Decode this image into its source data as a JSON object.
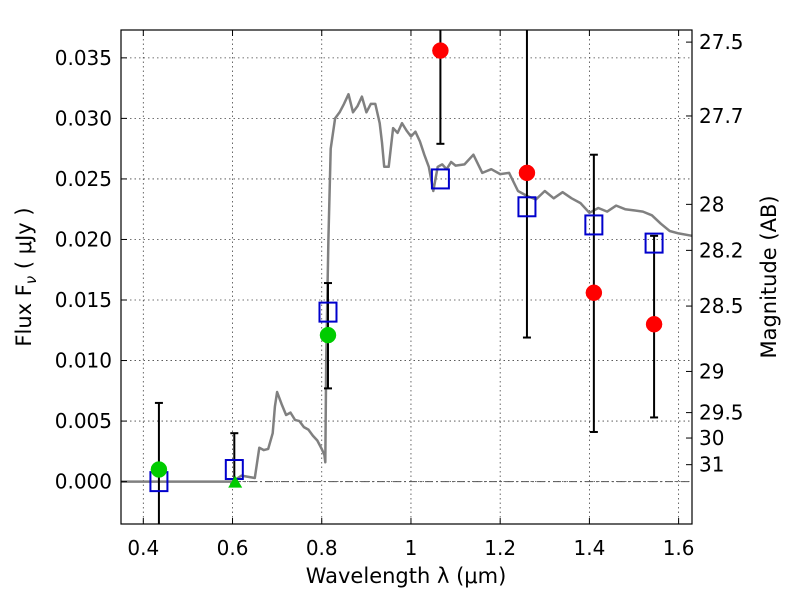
{
  "chart_data": {
    "type": "scatter",
    "xlabel": "Wavelength  λ (μm)",
    "ylabel": "Flux  F",
    "ylabel_sub": "ν",
    "ylabel_unit": "  ( μJy )",
    "y2label": "Magnitude (AB)",
    "xlim": [
      0.35,
      1.63
    ],
    "ylim": [
      -0.0035,
      0.0373
    ],
    "grid": true,
    "x_ticks": [
      {
        "value": 0.4,
        "label": "0.4"
      },
      {
        "value": 0.6,
        "label": "0.6"
      },
      {
        "value": 0.8,
        "label": "0.8"
      },
      {
        "value": 1.0,
        "label": "1"
      },
      {
        "value": 1.2,
        "label": "1.2"
      },
      {
        "value": 1.4,
        "label": "1.4"
      },
      {
        "value": 1.6,
        "label": "1.6"
      }
    ],
    "y_ticks": [
      {
        "value": 0.0,
        "label": "0.000"
      },
      {
        "value": 0.005,
        "label": "0.005"
      },
      {
        "value": 0.01,
        "label": "0.010"
      },
      {
        "value": 0.015,
        "label": "0.015"
      },
      {
        "value": 0.02,
        "label": "0.020"
      },
      {
        "value": 0.025,
        "label": "0.025"
      },
      {
        "value": 0.03,
        "label": "0.030"
      },
      {
        "value": 0.035,
        "label": "0.035"
      }
    ],
    "y2_ticks": [
      {
        "label": "27.5",
        "flux": 0.0363
      },
      {
        "label": "27.7",
        "flux": 0.0302
      },
      {
        "label": "28",
        "flux": 0.0229
      },
      {
        "label": "28.2",
        "flux": 0.0191
      },
      {
        "label": "28.5",
        "flux": 0.0145
      },
      {
        "label": "29",
        "flux": 0.0091
      },
      {
        "label": "29.5",
        "flux": 0.0057
      },
      {
        "label": "30",
        "flux": 0.0036
      },
      {
        "label": "31",
        "flux": 0.0014
      }
    ],
    "sed_model": {
      "color": "#808080",
      "x": [
        0.35,
        0.6,
        0.62,
        0.65,
        0.66,
        0.67,
        0.68,
        0.69,
        0.695,
        0.7,
        0.71,
        0.72,
        0.73,
        0.74,
        0.75,
        0.76,
        0.77,
        0.78,
        0.79,
        0.8,
        0.806,
        0.808,
        0.81,
        0.815,
        0.82,
        0.83,
        0.84,
        0.85,
        0.86,
        0.87,
        0.88,
        0.89,
        0.9,
        0.91,
        0.92,
        0.93,
        0.935,
        0.94,
        0.95,
        0.96,
        0.97,
        0.98,
        0.99,
        1.0,
        1.01,
        1.02,
        1.03,
        1.04,
        1.05,
        1.06,
        1.07,
        1.08,
        1.09,
        1.1,
        1.12,
        1.14,
        1.16,
        1.18,
        1.2,
        1.22,
        1.24,
        1.26,
        1.28,
        1.3,
        1.32,
        1.34,
        1.36,
        1.38,
        1.4,
        1.42,
        1.44,
        1.46,
        1.48,
        1.5,
        1.52,
        1.54,
        1.56,
        1.58,
        1.6,
        1.63
      ],
      "y": [
        0.0,
        0.0,
        0.0005,
        0.0003,
        0.0028,
        0.0026,
        0.0027,
        0.004,
        0.0062,
        0.0074,
        0.0064,
        0.0055,
        0.0057,
        0.0051,
        0.005,
        0.0045,
        0.0043,
        0.0038,
        0.0034,
        0.0027,
        0.0022,
        0.0016,
        0.01,
        0.02,
        0.0275,
        0.03,
        0.0305,
        0.0312,
        0.032,
        0.0305,
        0.031,
        0.0318,
        0.0305,
        0.0312,
        0.0312,
        0.0296,
        0.028,
        0.026,
        0.026,
        0.0292,
        0.0288,
        0.0296,
        0.029,
        0.0285,
        0.0289,
        0.0281,
        0.027,
        0.026,
        0.024,
        0.026,
        0.0262,
        0.0258,
        0.0264,
        0.0261,
        0.0262,
        0.027,
        0.0255,
        0.0258,
        0.0254,
        0.0255,
        0.024,
        0.0236,
        0.0233,
        0.024,
        0.0234,
        0.0239,
        0.0234,
        0.023,
        0.0222,
        0.0226,
        0.0223,
        0.0228,
        0.0225,
        0.0224,
        0.0223,
        0.022,
        0.0213,
        0.0207,
        0.0205,
        0.0203
      ]
    },
    "series": [
      {
        "marker": "square-open",
        "color": "#0000cc",
        "points": [
          {
            "x": 0.435,
            "y": 0.0
          },
          {
            "x": 0.604,
            "y": 0.001
          },
          {
            "x": 0.814,
            "y": 0.014
          },
          {
            "x": 1.066,
            "y": 0.025
          },
          {
            "x": 1.26,
            "y": 0.0227
          },
          {
            "x": 1.41,
            "y": 0.0212
          },
          {
            "x": 1.545,
            "y": 0.0197
          }
        ]
      },
      {
        "marker": "circle",
        "color": "#00cc00",
        "points": [
          {
            "x": 0.435,
            "y": 0.001
          },
          {
            "x": 0.814,
            "y": 0.0121
          }
        ]
      },
      {
        "marker": "triangle",
        "color": "#00cc00",
        "points": [
          {
            "x": 0.606,
            "y": 0.0
          }
        ]
      },
      {
        "marker": "circle",
        "color": "#ff0000",
        "points": [
          {
            "x": 1.066,
            "y": 0.0356
          },
          {
            "x": 1.26,
            "y": 0.0255
          },
          {
            "x": 1.41,
            "y": 0.0156
          },
          {
            "x": 1.545,
            "y": 0.013
          }
        ]
      }
    ],
    "error_bars": [
      {
        "x": 0.435,
        "low": -0.0035,
        "high": 0.0065
      },
      {
        "x": 0.604,
        "low": -0.0002,
        "high": 0.004
      },
      {
        "x": 0.814,
        "low": 0.0077,
        "high": 0.0164
      },
      {
        "x": 1.066,
        "low": 0.0279,
        "high": 0.0373
      },
      {
        "x": 1.26,
        "low": 0.0119,
        "high": 0.0373
      },
      {
        "x": 1.41,
        "low": 0.0041,
        "high": 0.027
      },
      {
        "x": 1.545,
        "low": 0.0053,
        "high": 0.0203
      }
    ],
    "zero_line": {
      "y": 0.0,
      "style": "dash-dot"
    }
  }
}
